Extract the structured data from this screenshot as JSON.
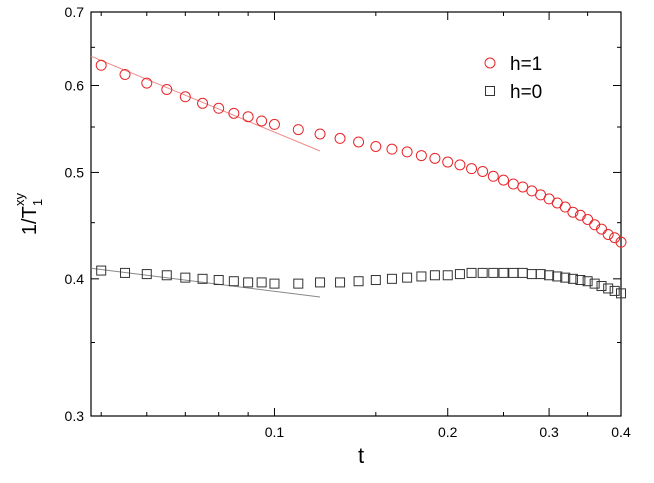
{
  "chart_data": {
    "type": "scatter",
    "x_label": "t",
    "y_label": {
      "base": "1/T",
      "sub": "1",
      "sup": "xy"
    },
    "log_x": true,
    "log_y": true,
    "legend": "upper right",
    "xlim": [
      0.048,
      0.4
    ],
    "ylim": [
      0.3,
      0.7
    ],
    "xticks": [
      0.1,
      0.2,
      0.3,
      0.4
    ],
    "yticks": [
      0.3,
      0.4,
      0.5,
      0.6,
      0.7
    ],
    "xminor": [
      0.05,
      0.06,
      0.07,
      0.08,
      0.09,
      0.15,
      0.25,
      0.35
    ],
    "yminor": [
      0.35,
      0.45,
      0.55,
      0.65
    ],
    "x": [
      0.05,
      0.055,
      0.06,
      0.065,
      0.07,
      0.075,
      0.08,
      0.085,
      0.09,
      0.095,
      0.1,
      0.11,
      0.12,
      0.13,
      0.14,
      0.15,
      0.16,
      0.17,
      0.18,
      0.19,
      0.2,
      0.21,
      0.22,
      0.23,
      0.24,
      0.25,
      0.26,
      0.27,
      0.28,
      0.29,
      0.3,
      0.31,
      0.32,
      0.33,
      0.34,
      0.35,
      0.36,
      0.37,
      0.38,
      0.39,
      0.4
    ],
    "series": [
      {
        "name": "h=1",
        "color": "#e8262a",
        "marker": "circle",
        "values": [
          0.626,
          0.614,
          0.603,
          0.595,
          0.586,
          0.578,
          0.572,
          0.566,
          0.562,
          0.557,
          0.553,
          0.547,
          0.542,
          0.537,
          0.533,
          0.528,
          0.525,
          0.522,
          0.518,
          0.515,
          0.511,
          0.508,
          0.504,
          0.501,
          0.496,
          0.492,
          0.488,
          0.485,
          0.481,
          0.477,
          0.473,
          0.469,
          0.465,
          0.46,
          0.457,
          0.453,
          0.448,
          0.444,
          0.439,
          0.436,
          0.432
        ]
      },
      {
        "name": "h=0",
        "color": "#333333",
        "marker": "square",
        "values": [
          0.407,
          0.405,
          0.404,
          0.403,
          0.401,
          0.4,
          0.399,
          0.398,
          0.397,
          0.397,
          0.396,
          0.396,
          0.397,
          0.397,
          0.398,
          0.399,
          0.4,
          0.401,
          0.402,
          0.403,
          0.403,
          0.404,
          0.405,
          0.405,
          0.405,
          0.405,
          0.405,
          0.405,
          0.404,
          0.404,
          0.403,
          0.402,
          0.401,
          0.4,
          0.399,
          0.398,
          0.396,
          0.394,
          0.392,
          0.39,
          0.388
        ]
      }
    ],
    "fit_lines": [
      {
        "color": "#f08a8a",
        "x": [
          0.048,
          0.12
        ],
        "values": [
          0.638,
          0.523
        ]
      },
      {
        "color": "#888888",
        "x": [
          0.048,
          0.12
        ],
        "values": [
          0.409,
          0.385
        ]
      }
    ]
  }
}
